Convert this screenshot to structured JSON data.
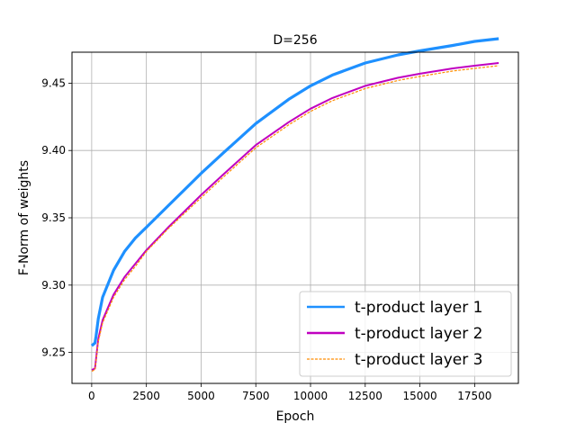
{
  "chart_data": {
    "type": "line",
    "title": "D=256",
    "xlabel": "Epoch",
    "ylabel": "F-Norm of weights",
    "xlim": [
      -900,
      19500
    ],
    "ylim": [
      9.227,
      9.473
    ],
    "xticks": [
      0,
      2500,
      5000,
      7500,
      10000,
      12500,
      15000,
      17500
    ],
    "yticks": [
      9.25,
      9.3,
      9.35,
      9.4,
      9.45
    ],
    "ytick_labels": [
      "9.25",
      "9.30",
      "9.35",
      "9.40",
      "9.45"
    ],
    "grid": true,
    "legend_position": "lower-right",
    "series": [
      {
        "name": "t-product layer 1",
        "color": "#1e90ff",
        "style": "solid",
        "x": [
          0,
          150,
          200,
          300,
          500,
          1000,
          1500,
          2000,
          2500,
          3500,
          5000,
          6000,
          7500,
          9000,
          10000,
          11000,
          12500,
          14000,
          15000,
          16500,
          17500,
          18600
        ],
        "y": [
          9.255,
          9.257,
          9.262,
          9.275,
          9.291,
          9.311,
          9.325,
          9.335,
          9.343,
          9.359,
          9.383,
          9.398,
          9.42,
          9.438,
          9.448,
          9.456,
          9.465,
          9.471,
          9.474,
          9.478,
          9.481,
          9.483
        ]
      },
      {
        "name": "t-product layer 2",
        "color": "#c000c0",
        "style": "solid",
        "x": [
          0,
          150,
          200,
          300,
          500,
          1000,
          1500,
          2000,
          2500,
          3500,
          5000,
          6000,
          7500,
          9000,
          10000,
          11000,
          12500,
          14000,
          15000,
          16500,
          17500,
          18600
        ],
        "y": [
          9.237,
          9.238,
          9.245,
          9.26,
          9.274,
          9.293,
          9.306,
          9.316,
          9.326,
          9.343,
          9.367,
          9.382,
          9.404,
          9.421,
          9.431,
          9.439,
          9.448,
          9.454,
          9.457,
          9.461,
          9.463,
          9.465
        ]
      },
      {
        "name": "t-product layer 3",
        "color": "#ff8c00",
        "style": "dashed",
        "x": [
          0,
          150,
          200,
          300,
          500,
          1000,
          1500,
          2000,
          2500,
          3500,
          5000,
          6000,
          7500,
          9000,
          10000,
          11000,
          12500,
          14000,
          15000,
          16500,
          17500,
          18600
        ],
        "y": [
          9.236,
          9.237,
          9.244,
          9.258,
          9.272,
          9.291,
          9.304,
          9.314,
          9.325,
          9.342,
          9.365,
          9.38,
          9.402,
          9.419,
          9.429,
          9.437,
          9.446,
          9.452,
          9.455,
          9.459,
          9.461,
          9.463
        ]
      }
    ]
  }
}
